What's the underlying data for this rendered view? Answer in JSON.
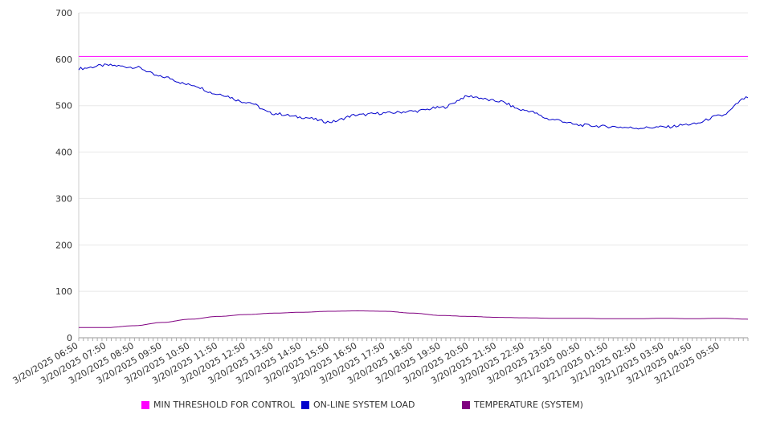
{
  "chart_data": {
    "type": "line",
    "ylim": [
      0,
      700
    ],
    "y_ticks": [
      "0",
      "100",
      "200",
      "300",
      "400",
      "500",
      "600",
      "700"
    ],
    "x_tick_labels": [
      "3/20/2025 06:50",
      "3/20/2025 07:50",
      "3/20/2025 08:50",
      "3/20/2025 09:50",
      "3/20/2025 10:50",
      "3/20/2025 11:50",
      "3/20/2025 12:50",
      "3/20/2025 13:50",
      "3/20/2025 14:50",
      "3/20/2025 15:50",
      "3/20/2025 16:50",
      "3/20/2025 17:50",
      "3/20/2025 18:50",
      "3/20/2025 19:50",
      "3/20/2025 20:50",
      "3/20/2025 21:50",
      "3/20/2025 22:50",
      "3/20/2025 23:50",
      "3/21/2025 00:50",
      "3/21/2025 01:50",
      "3/21/2025 02:50",
      "3/21/2025 03:50",
      "3/21/2025 04:50",
      "3/21/2025 05:50"
    ],
    "x": [
      "3/20/2025 06:50",
      "3/20/2025 07:50",
      "3/20/2025 08:50",
      "3/20/2025 09:50",
      "3/20/2025 10:50",
      "3/20/2025 11:50",
      "3/20/2025 12:50",
      "3/20/2025 13:50",
      "3/20/2025 14:50",
      "3/20/2025 15:50",
      "3/20/2025 16:50",
      "3/20/2025 17:50",
      "3/20/2025 18:50",
      "3/20/2025 19:50",
      "3/20/2025 20:50",
      "3/20/2025 21:50",
      "3/20/2025 22:50",
      "3/20/2025 23:50",
      "3/21/2025 00:50",
      "3/21/2025 01:50",
      "3/21/2025 02:50",
      "3/21/2025 03:50",
      "3/21/2025 04:50",
      "3/21/2025 05:50",
      "3/21/2025 06:50"
    ],
    "grid": true,
    "legend_position": "bottom",
    "series": [
      {
        "name": "MIN THRESHOLD FOR CONTROL",
        "color": "#ff00ff",
        "values": [
          606,
          606,
          606,
          606,
          606,
          606,
          606,
          606,
          606,
          606,
          606,
          606,
          606,
          606,
          606,
          606,
          606,
          606,
          606,
          606,
          606,
          606,
          606,
          606,
          606
        ]
      },
      {
        "name": "ON-LINE SYSTEM LOAD",
        "color": "#0000cc",
        "values": [
          580,
          587,
          583,
          562,
          545,
          525,
          508,
          483,
          475,
          465,
          480,
          484,
          488,
          496,
          520,
          510,
          490,
          470,
          458,
          455,
          452,
          454,
          460,
          478,
          517
        ]
      },
      {
        "name": "TEMPERATURE (SYSTEM)",
        "color": "#800080",
        "values": [
          22,
          22,
          26,
          33,
          40,
          46,
          50,
          53,
          55,
          57,
          58,
          57,
          53,
          48,
          46,
          44,
          43,
          42,
          42,
          41,
          41,
          42,
          41,
          42,
          40
        ]
      }
    ]
  }
}
